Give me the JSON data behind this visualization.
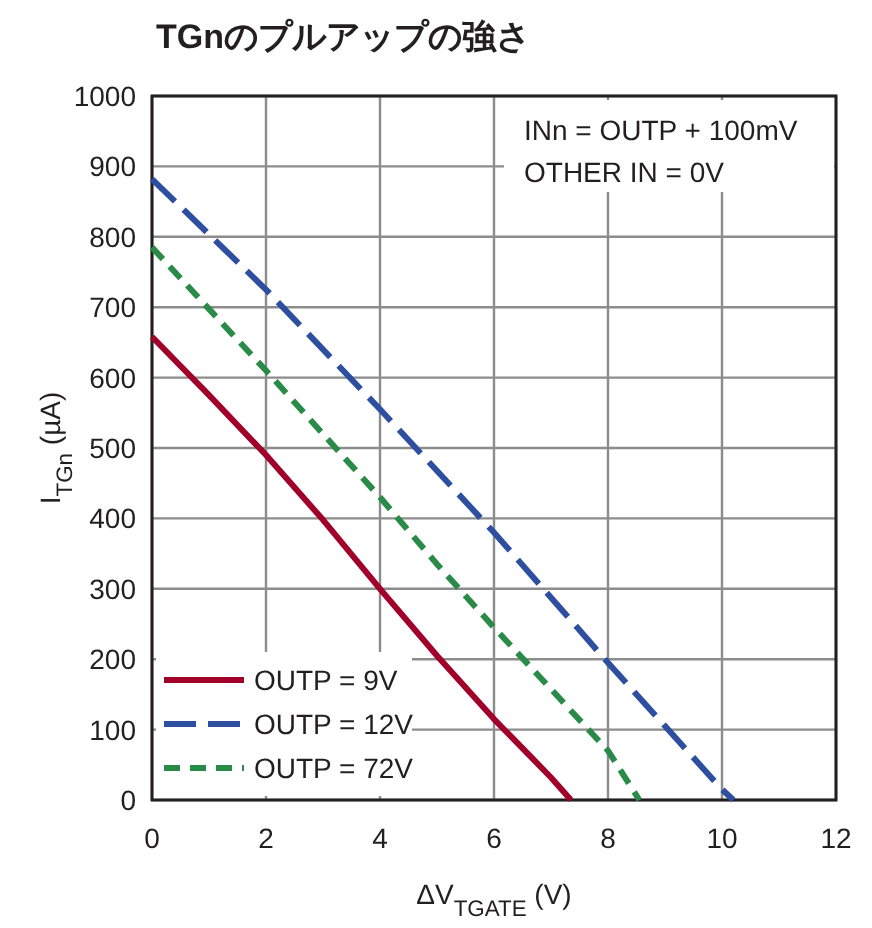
{
  "chart_data": {
    "type": "line",
    "title": "TGnのプルアップの強さ",
    "xlabel": "ΔV$_{TGATE}$ (V)",
    "ylabel": "I$_{TGn}$ (µA)",
    "annotations": [
      "INn = OUTP + 100mV",
      "OTHER IN = 0V"
    ],
    "xlim": [
      0,
      12
    ],
    "xticks": [
      0,
      2,
      4,
      6,
      8,
      10,
      12
    ],
    "ylim": [
      0,
      1000
    ],
    "yticks": [
      0,
      100,
      200,
      300,
      400,
      500,
      600,
      700,
      800,
      900,
      1000
    ],
    "grid": true,
    "legend": "bottom left",
    "series": [
      {
        "name": "OUTP = 9V",
        "color": "#a0002a",
        "line_style": "solid",
        "x": [
          0,
          1,
          2,
          3,
          4,
          5,
          6,
          7,
          7.35
        ],
        "values": [
          658,
          575,
          490,
          398,
          300,
          205,
          115,
          32,
          0
        ]
      },
      {
        "name": "OUTP = 12V",
        "color": "#2e4fa0",
        "line_style": "dashed",
        "x": [
          0,
          2,
          4,
          6,
          8,
          9,
          10,
          10.2
        ],
        "values": [
          882,
          725,
          555,
          380,
          195,
          105,
          15,
          0
        ]
      },
      {
        "name": "OUTP = 72V",
        "color": "#2a8a48",
        "line_style": "dashed",
        "x": [
          0,
          2,
          4,
          5,
          6,
          8,
          8.55
        ],
        "values": [
          785,
          610,
          430,
          335,
          245,
          70,
          0
        ]
      }
    ]
  }
}
